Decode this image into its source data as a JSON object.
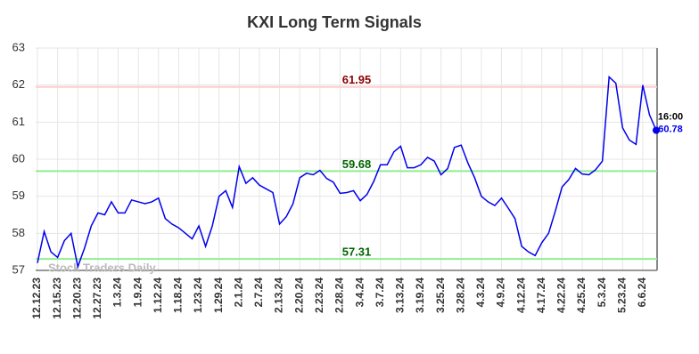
{
  "chart_data": {
    "type": "line",
    "title": "KXI Long Term Signals",
    "watermark": "Stock Traders Daily",
    "categories": [
      "12.12.23",
      null,
      null,
      "12.15.23",
      null,
      null,
      "12.20.23",
      null,
      null,
      "12.27.23",
      null,
      null,
      "1.3.24",
      null,
      null,
      "1.9.24",
      null,
      null,
      "1.12.24",
      null,
      null,
      "1.18.24",
      null,
      null,
      "1.23.24",
      null,
      null,
      "1.29.24",
      null,
      null,
      "2.1.24",
      null,
      null,
      "2.7.24",
      null,
      null,
      "2.13.24",
      null,
      null,
      "2.20.24",
      null,
      null,
      "2.23.24",
      null,
      null,
      "2.28.24",
      null,
      null,
      "3.4.24",
      null,
      null,
      "3.7.24",
      null,
      null,
      "3.13.24",
      null,
      null,
      "3.19.24",
      null,
      null,
      "3.25.24",
      null,
      null,
      "3.28.24",
      null,
      null,
      "4.3.24",
      null,
      null,
      "4.9.24",
      null,
      null,
      "4.12.24",
      null,
      null,
      "4.17.24",
      null,
      null,
      "4.22.24",
      null,
      null,
      "4.25.24",
      null,
      null,
      "5.3.24",
      null,
      null,
      "5.23.24",
      null,
      null,
      "6.6.24",
      null,
      null
    ],
    "series": [
      {
        "name": "KXI",
        "color": "#0000ee",
        "values": [
          57.2,
          58.05,
          57.5,
          57.35,
          57.8,
          58.0,
          57.1,
          57.6,
          58.2,
          58.55,
          58.5,
          58.85,
          58.55,
          58.55,
          58.9,
          58.85,
          58.8,
          58.85,
          58.95,
          58.4,
          58.25,
          58.15,
          58.0,
          57.85,
          58.2,
          57.65,
          58.2,
          59.0,
          59.15,
          58.7,
          59.8,
          59.35,
          59.5,
          59.3,
          59.2,
          59.1,
          58.25,
          58.45,
          58.8,
          59.5,
          59.62,
          59.58,
          59.7,
          59.48,
          59.38,
          59.08,
          59.1,
          59.15,
          58.88,
          59.05,
          59.4,
          59.85,
          59.85,
          60.2,
          60.35,
          59.77,
          59.77,
          59.85,
          60.05,
          59.95,
          59.58,
          59.75,
          60.32,
          60.38,
          59.9,
          59.5,
          59.0,
          58.85,
          58.75,
          58.95,
          58.68,
          58.4,
          57.65,
          57.5,
          57.4,
          57.75,
          58.0,
          58.6,
          59.25,
          59.45,
          59.75,
          59.6,
          59.58,
          59.72,
          59.95,
          62.22,
          62.05,
          60.85,
          60.52,
          60.4,
          62.0,
          61.2,
          60.78
        ]
      }
    ],
    "last_time": "16:00",
    "levels": [
      {
        "value": 61.95,
        "color": "#ffcccc",
        "label_color": "#8b0000"
      },
      {
        "value": 59.68,
        "color": "#90ee90",
        "label_color": "#006400"
      },
      {
        "value": 57.31,
        "color": "#90ee90",
        "label_color": "#006400"
      }
    ],
    "ylim": [
      57,
      63
    ],
    "yticks": [
      57,
      58,
      59,
      60,
      61,
      62,
      63
    ],
    "grid": true
  }
}
